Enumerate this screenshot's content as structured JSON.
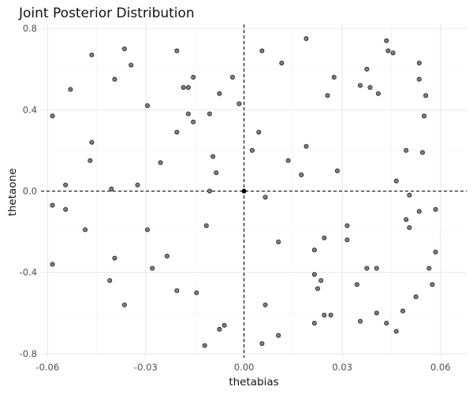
{
  "chart_data": {
    "type": "scatter",
    "title": "Joint Posterior Distribution",
    "xlabel": "thetabias",
    "ylabel": "thetaone",
    "xlim": [
      -0.062,
      0.068
    ],
    "ylim": [
      -0.82,
      0.82
    ],
    "xticks": [
      -0.06,
      -0.03,
      0.0,
      0.03,
      0.06
    ],
    "xtick_labels": [
      "-0.06",
      "-0.03",
      "0.00",
      "0.03",
      "0.06"
    ],
    "yticks": [
      -0.8,
      -0.4,
      0.0,
      0.4,
      0.8
    ],
    "ytick_labels": [
      "-0.8",
      "-0.4",
      "0.0",
      "0.4",
      "0.8"
    ],
    "grid": true,
    "reference_lines": {
      "x": 0.0,
      "y": 0.0,
      "style": "dashed"
    },
    "highlight_point": {
      "x": 0.0,
      "y": 0.0
    },
    "points": [
      {
        "x": -0.0585,
        "y": 0.37
      },
      {
        "x": -0.053,
        "y": 0.5
      },
      {
        "x": -0.0465,
        "y": 0.67
      },
      {
        "x": -0.0365,
        "y": 0.7
      },
      {
        "x": -0.0345,
        "y": 0.62
      },
      {
        "x": -0.0395,
        "y": 0.55
      },
      {
        "x": -0.0205,
        "y": 0.69
      },
      {
        "x": -0.0185,
        "y": 0.51
      },
      {
        "x": -0.017,
        "y": 0.51
      },
      {
        "x": -0.0155,
        "y": 0.56
      },
      {
        "x": -0.0075,
        "y": 0.48
      },
      {
        "x": -0.0035,
        "y": 0.56
      },
      {
        "x": -0.0015,
        "y": 0.43
      },
      {
        "x": -0.0295,
        "y": 0.42
      },
      {
        "x": -0.017,
        "y": 0.38
      },
      {
        "x": -0.0155,
        "y": 0.34
      },
      {
        "x": -0.0105,
        "y": 0.38
      },
      {
        "x": -0.0205,
        "y": 0.29
      },
      {
        "x": -0.0465,
        "y": 0.24
      },
      {
        "x": -0.047,
        "y": 0.15
      },
      {
        "x": -0.0255,
        "y": 0.14
      },
      {
        "x": -0.0095,
        "y": 0.17
      },
      {
        "x": -0.0085,
        "y": 0.09
      },
      {
        "x": -0.0325,
        "y": 0.03
      },
      {
        "x": -0.0545,
        "y": 0.03
      },
      {
        "x": -0.0405,
        "y": 0.01
      },
      {
        "x": -0.0105,
        "y": 0.0
      },
      {
        "x": -0.0585,
        "y": -0.07
      },
      {
        "x": -0.0545,
        "y": -0.09
      },
      {
        "x": -0.0485,
        "y": -0.19
      },
      {
        "x": -0.0295,
        "y": -0.19
      },
      {
        "x": -0.0115,
        "y": -0.17
      },
      {
        "x": -0.0585,
        "y": -0.36
      },
      {
        "x": -0.0395,
        "y": -0.33
      },
      {
        "x": -0.0235,
        "y": -0.32
      },
      {
        "x": -0.028,
        "y": -0.38
      },
      {
        "x": -0.041,
        "y": -0.44
      },
      {
        "x": -0.0205,
        "y": -0.49
      },
      {
        "x": -0.0145,
        "y": -0.5
      },
      {
        "x": -0.0365,
        "y": -0.56
      },
      {
        "x": -0.006,
        "y": -0.66
      },
      {
        "x": -0.0075,
        "y": -0.68
      },
      {
        "x": -0.012,
        "y": -0.76
      },
      {
        "x": 0.0055,
        "y": 0.69
      },
      {
        "x": 0.0115,
        "y": 0.63
      },
      {
        "x": 0.019,
        "y": 0.75
      },
      {
        "x": 0.0275,
        "y": 0.56
      },
      {
        "x": 0.0255,
        "y": 0.47
      },
      {
        "x": 0.0355,
        "y": 0.52
      },
      {
        "x": 0.0375,
        "y": 0.6
      },
      {
        "x": 0.0385,
        "y": 0.51
      },
      {
        "x": 0.041,
        "y": 0.48
      },
      {
        "x": 0.0435,
        "y": 0.74
      },
      {
        "x": 0.044,
        "y": 0.69
      },
      {
        "x": 0.0455,
        "y": 0.68
      },
      {
        "x": 0.0535,
        "y": 0.63
      },
      {
        "x": 0.0535,
        "y": 0.55
      },
      {
        "x": 0.0555,
        "y": 0.47
      },
      {
        "x": 0.055,
        "y": 0.37
      },
      {
        "x": 0.0045,
        "y": 0.29
      },
      {
        "x": 0.0025,
        "y": 0.2
      },
      {
        "x": 0.019,
        "y": 0.22
      },
      {
        "x": 0.0135,
        "y": 0.15
      },
      {
        "x": 0.0175,
        "y": 0.08
      },
      {
        "x": 0.0285,
        "y": 0.1
      },
      {
        "x": 0.0495,
        "y": 0.2
      },
      {
        "x": 0.0545,
        "y": 0.19
      },
      {
        "x": 0.0465,
        "y": 0.05
      },
      {
        "x": 0.0505,
        "y": -0.02
      },
      {
        "x": 0.0065,
        "y": -0.03
      },
      {
        "x": 0.0495,
        "y": -0.14
      },
      {
        "x": 0.0505,
        "y": -0.18
      },
      {
        "x": 0.0535,
        "y": -0.1
      },
      {
        "x": 0.0585,
        "y": -0.09
      },
      {
        "x": 0.0315,
        "y": -0.17
      },
      {
        "x": 0.0315,
        "y": -0.24
      },
      {
        "x": 0.0245,
        "y": -0.23
      },
      {
        "x": 0.0105,
        "y": -0.25
      },
      {
        "x": 0.0215,
        "y": -0.29
      },
      {
        "x": 0.0375,
        "y": -0.38
      },
      {
        "x": 0.0405,
        "y": -0.38
      },
      {
        "x": 0.0585,
        "y": -0.3
      },
      {
        "x": 0.0565,
        "y": -0.38
      },
      {
        "x": 0.0575,
        "y": -0.46
      },
      {
        "x": 0.0215,
        "y": -0.41
      },
      {
        "x": 0.0235,
        "y": -0.44
      },
      {
        "x": 0.0225,
        "y": -0.48
      },
      {
        "x": 0.0345,
        "y": -0.46
      },
      {
        "x": 0.0525,
        "y": -0.52
      },
      {
        "x": 0.0485,
        "y": -0.59
      },
      {
        "x": 0.0065,
        "y": -0.56
      },
      {
        "x": 0.0245,
        "y": -0.61
      },
      {
        "x": 0.0265,
        "y": -0.61
      },
      {
        "x": 0.0215,
        "y": -0.65
      },
      {
        "x": 0.0355,
        "y": -0.64
      },
      {
        "x": 0.0405,
        "y": -0.6
      },
      {
        "x": 0.0435,
        "y": -0.65
      },
      {
        "x": 0.0465,
        "y": -0.69
      },
      {
        "x": 0.0105,
        "y": -0.71
      },
      {
        "x": 0.0055,
        "y": -0.75
      }
    ]
  }
}
